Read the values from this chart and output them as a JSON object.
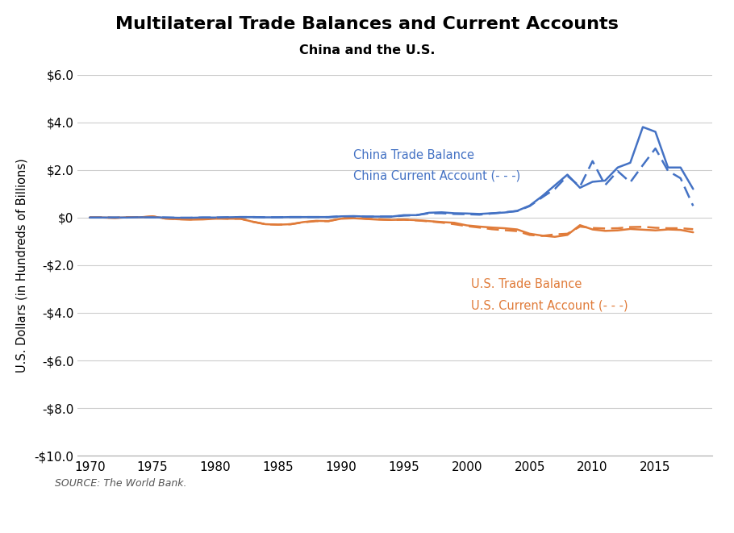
{
  "title": "Multilateral Trade Balances and Current Accounts",
  "subtitle": "China and the U.S.",
  "ylabel": "U.S. Dollars (in Hundreds of Billions)",
  "source": "SOURCE: The World Bank.",
  "footer_bg": "#1a3a5c",
  "ylim": [
    -10.0,
    6.0
  ],
  "yticks": [
    -10.0,
    -8.0,
    -6.0,
    -4.0,
    -2.0,
    0.0,
    2.0,
    4.0,
    6.0
  ],
  "ytick_labels": [
    "-$10.0",
    "-$8.0",
    "-$6.0",
    "-$4.0",
    "-$2.0",
    "$0",
    "$2.0",
    "$4.0",
    "$6.0"
  ],
  "xticks": [
    1970,
    1975,
    1980,
    1985,
    1990,
    1995,
    2000,
    2005,
    2010,
    2015
  ],
  "china_color": "#4472C4",
  "us_color": "#E07B39",
  "china_trade_balance_label": "China Trade Balance",
  "china_current_account_label": "China Current Account (- - -)",
  "us_trade_balance_label": "U.S. Trade Balance",
  "us_current_account_label": "U.S. Current Account (- - -)",
  "years": [
    1970,
    1971,
    1972,
    1973,
    1974,
    1975,
    1976,
    1977,
    1978,
    1979,
    1980,
    1981,
    1982,
    1983,
    1984,
    1985,
    1986,
    1987,
    1988,
    1989,
    1990,
    1991,
    1992,
    1993,
    1994,
    1995,
    1996,
    1997,
    1998,
    1999,
    2000,
    2001,
    2002,
    2003,
    2004,
    2005,
    2006,
    2007,
    2008,
    2009,
    2010,
    2011,
    2012,
    2013,
    2014,
    2015,
    2016,
    2017,
    2018
  ],
  "china_trade": [
    0.0,
    0.0,
    0.0,
    0.0,
    0.01,
    0.01,
    0.0,
    -0.01,
    -0.01,
    0.0,
    0.0,
    0.01,
    0.02,
    0.02,
    0.01,
    0.01,
    0.02,
    0.02,
    0.02,
    0.02,
    0.05,
    0.06,
    0.04,
    0.04,
    0.04,
    0.1,
    0.1,
    0.2,
    0.22,
    0.18,
    0.17,
    0.15,
    0.18,
    0.21,
    0.28,
    0.5,
    0.9,
    1.35,
    1.8,
    1.25,
    1.5,
    1.55,
    2.1,
    2.3,
    3.8,
    3.6,
    2.1,
    2.1,
    1.2
  ],
  "china_current": [
    0.0,
    0.0,
    0.0,
    0.0,
    0.01,
    0.01,
    0.0,
    -0.01,
    -0.01,
    0.0,
    0.0,
    0.01,
    0.02,
    0.02,
    0.01,
    0.01,
    0.02,
    0.02,
    0.02,
    0.02,
    0.05,
    0.05,
    0.04,
    0.04,
    0.04,
    0.08,
    0.1,
    0.18,
    0.18,
    0.15,
    0.14,
    0.12,
    0.17,
    0.22,
    0.27,
    0.48,
    0.85,
    1.2,
    1.75,
    1.3,
    2.37,
    1.36,
    1.95,
    1.48,
    2.2,
    2.9,
    1.96,
    1.65,
    0.49
  ],
  "us_trade": [
    0.0,
    0.0,
    -0.02,
    0.01,
    0.01,
    0.05,
    -0.04,
    -0.07,
    -0.09,
    -0.08,
    -0.05,
    -0.05,
    -0.05,
    -0.18,
    -0.28,
    -0.3,
    -0.28,
    -0.19,
    -0.14,
    -0.15,
    -0.05,
    -0.03,
    -0.06,
    -0.09,
    -0.1,
    -0.09,
    -0.11,
    -0.15,
    -0.19,
    -0.22,
    -0.33,
    -0.38,
    -0.42,
    -0.45,
    -0.5,
    -0.68,
    -0.76,
    -0.81,
    -0.73,
    -0.32,
    -0.5,
    -0.56,
    -0.54,
    -0.48,
    -0.51,
    -0.54,
    -0.5,
    -0.52,
    -0.62
  ],
  "us_current": [
    0.0,
    0.0,
    -0.01,
    0.01,
    0.0,
    0.05,
    -0.04,
    -0.07,
    -0.08,
    -0.05,
    -0.02,
    -0.05,
    -0.05,
    -0.18,
    -0.28,
    -0.3,
    -0.28,
    -0.2,
    -0.15,
    -0.15,
    -0.04,
    0.0,
    -0.05,
    -0.07,
    -0.1,
    -0.09,
    -0.12,
    -0.16,
    -0.21,
    -0.28,
    -0.36,
    -0.42,
    -0.49,
    -0.53,
    -0.57,
    -0.73,
    -0.77,
    -0.71,
    -0.68,
    -0.38,
    -0.44,
    -0.46,
    -0.45,
    -0.4,
    -0.39,
    -0.43,
    -0.45,
    -0.45,
    -0.49
  ]
}
